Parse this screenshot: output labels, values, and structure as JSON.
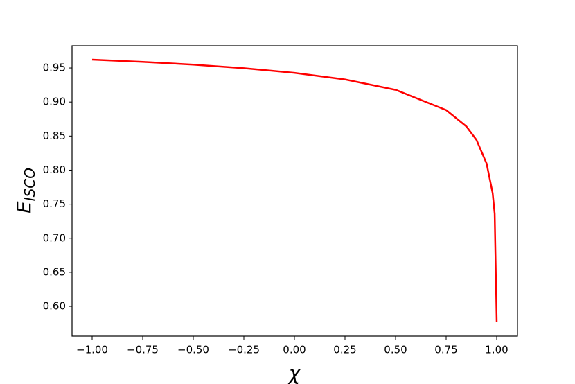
{
  "chart_data": {
    "type": "line",
    "xlabel": "χ",
    "ylabel": "E",
    "ylabel_sub": "ISCO",
    "x": [
      -1,
      -0.75,
      -0.5,
      -0.25,
      0,
      0.25,
      0.5,
      0.75,
      0.85,
      0.9,
      0.95,
      0.98,
      0.99,
      1
    ],
    "series": [
      {
        "color": "#ff0000",
        "values": [
          0.9623,
          0.9589,
          0.9549,
          0.9497,
          0.9428,
          0.9331,
          0.9179,
          0.8882,
          0.8642,
          0.8443,
          0.8098,
          0.7661,
          0.7359,
          0.5774
        ]
      }
    ],
    "xlim": [
      -1.0993,
      1.1027
    ],
    "ylim": [
      0.5563,
      0.9826
    ],
    "xticks": [
      {
        "value": -1,
        "label": "−1.00"
      },
      {
        "value": -0.75,
        "label": "−0.75"
      },
      {
        "value": -0.5,
        "label": "−0.50"
      },
      {
        "value": -0.25,
        "label": "−0.25"
      },
      {
        "value": 0,
        "label": "0.00"
      },
      {
        "value": 0.25,
        "label": "0.25"
      },
      {
        "value": 0.5,
        "label": "0.50"
      },
      {
        "value": 0.75,
        "label": "0.75"
      },
      {
        "value": 1,
        "label": "1.00"
      }
    ],
    "yticks": [
      {
        "value": 0.6,
        "label": "0.60"
      },
      {
        "value": 0.65,
        "label": "0.65"
      },
      {
        "value": 0.7,
        "label": "0.70"
      },
      {
        "value": 0.75,
        "label": "0.75"
      },
      {
        "value": 0.8,
        "label": "0.80"
      },
      {
        "value": 0.85,
        "label": "0.85"
      },
      {
        "value": 0.9,
        "label": "0.90"
      },
      {
        "value": 0.95,
        "label": "0.95"
      }
    ],
    "grid": false
  }
}
